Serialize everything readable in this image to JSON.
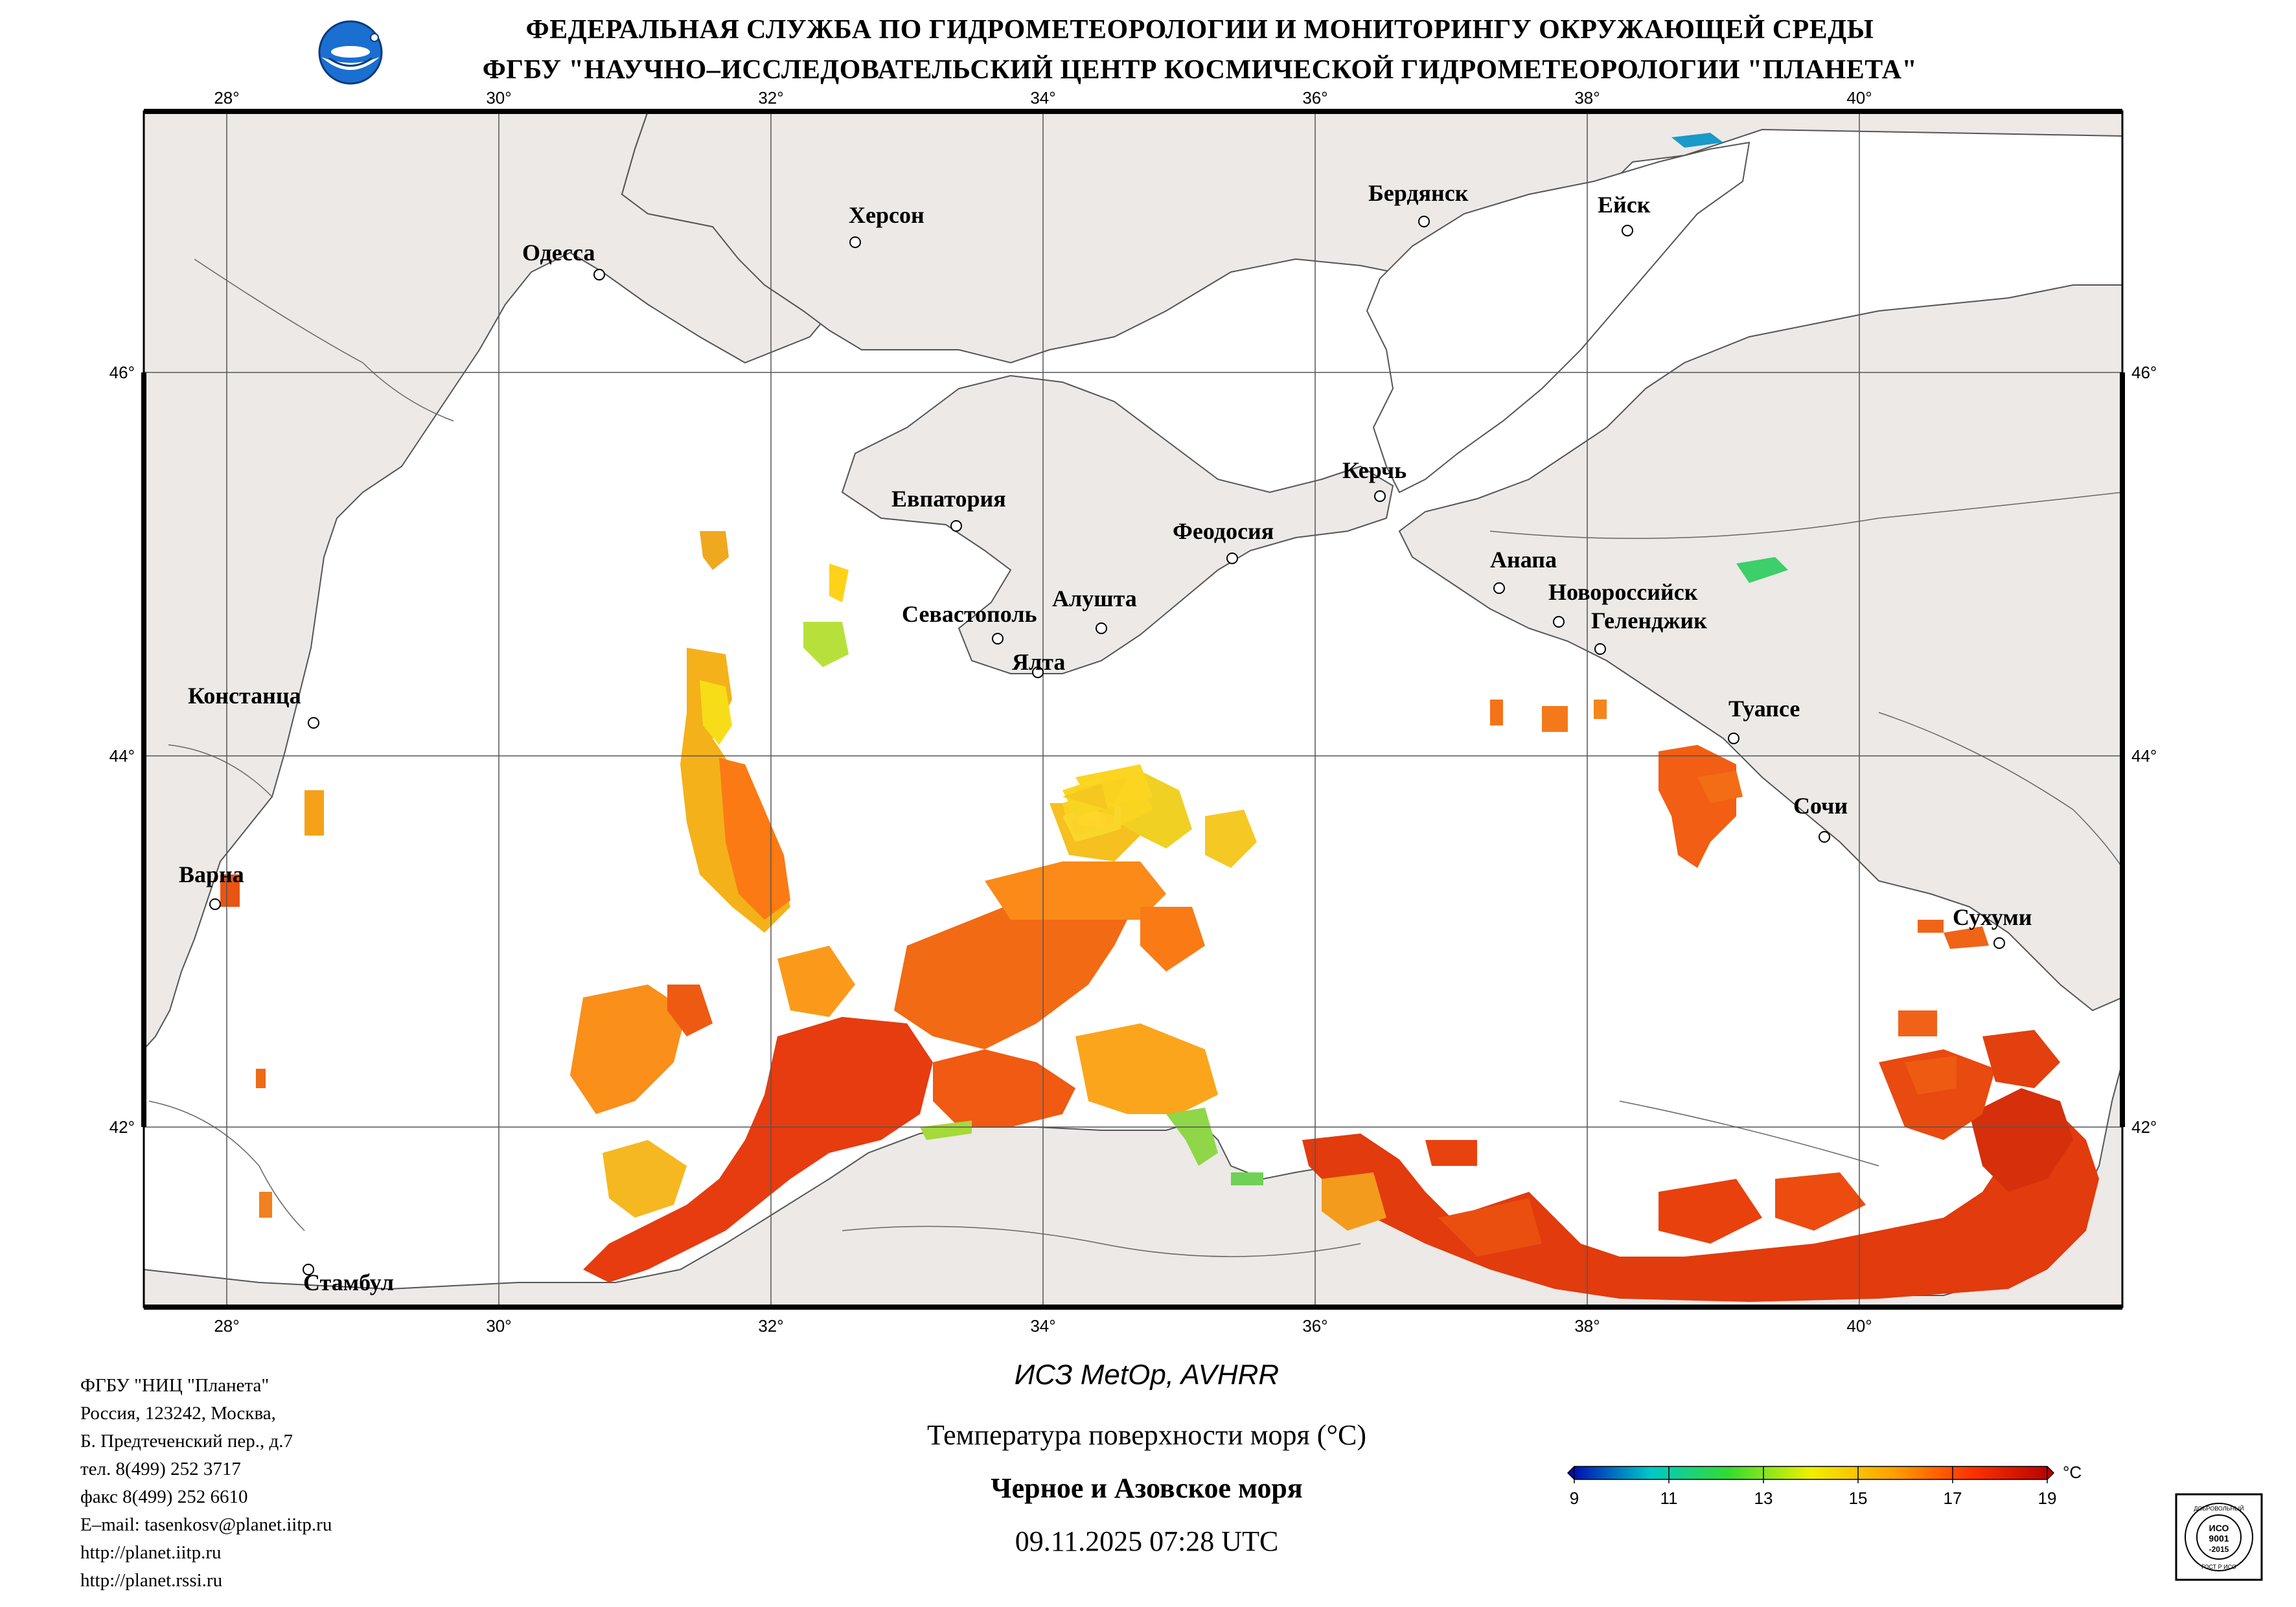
{
  "header": {
    "line1": "ФЕДЕРАЛЬНАЯ СЛУЖБА ПО ГИДРОМЕТЕОРОЛОГИИ И МОНИТОРИНГУ ОКРУЖАЮЩЕЙ СРЕДЫ",
    "line2": "ФГБУ \"НАУЧНО–ИССЛЕДОВАТЕЛЬСКИЙ ЦЕНТР КОСМИЧЕСКОЙ ГИДРОМЕТЕОРОЛОГИИ \"ПЛАНЕТА\""
  },
  "map": {
    "lon_labels": [
      "28°",
      "30°",
      "32°",
      "34°",
      "36°",
      "38°",
      "40°"
    ],
    "lat_labels": [
      "46°",
      "44°",
      "42°"
    ],
    "cities": [
      "Одесса",
      "Херсон",
      "Бердянск",
      "Ейск",
      "Евпатория",
      "Керчь",
      "Феодосия",
      "Анапа",
      "Новороссийск",
      "Геленджик",
      "Севастополь",
      "Алушта",
      "Ялта",
      "Констанца",
      "Туапсе",
      "Сочи",
      "Варна",
      "Сухуми",
      "Стамбул"
    ],
    "land_color": "#ece9e6",
    "sea_color": "#ffffff"
  },
  "caption": {
    "satellite": "ИСЗ MetOp, AVHRR",
    "parameter": "Температура поверхности моря (°C)",
    "region": "Черное и Азовское моря",
    "datetime": "09.11.2025 07:28 UTC"
  },
  "colorbar": {
    "ticks": [
      "9",
      "11",
      "13",
      "15",
      "17",
      "19"
    ],
    "unit": "°C",
    "colors": [
      "#0000b4",
      "#00c8c8",
      "#32dc32",
      "#f0f000",
      "#ffa000",
      "#ff3200",
      "#b40000"
    ]
  },
  "org": {
    "lines": [
      "ФГБУ \"НИЦ \"Планета\"",
      "Россия, 123242, Москва,",
      "Б. Предтеченский пер., д.7",
      "тел. 8(499) 252 3717",
      "факс 8(499) 252 6610",
      "E–mail: tasenkosv@planet.iitp.ru",
      "http://planet.iitp.ru",
      "http://planet.rssi.ru"
    ]
  },
  "iso_badge": {
    "top": "ДОБРОВОЛЬНЫЙ",
    "middle1": "ИСО",
    "middle2": "9001",
    "middle3": "-2015",
    "bottom": "ГОСТ Р ИСО"
  }
}
